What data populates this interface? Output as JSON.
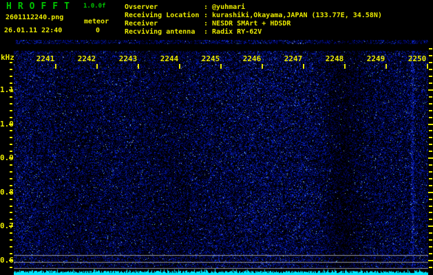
{
  "header": {
    "title": "HROFFT",
    "version": "1.0.0f",
    "filename": "2601112240.png",
    "meteor_label": "meteor",
    "meteor_count": "0",
    "timestamp": "26.01.11 22:40"
  },
  "info": {
    "rows": [
      {
        "label": "Ovserver",
        "sep": ":",
        "value": "@yuhmari"
      },
      {
        "label": "Receiving Location",
        "sep": ":",
        "value": "kurashiki,Okayama,JAPAN (133.77E, 34.58N)"
      },
      {
        "label": "Receiver",
        "sep": ":",
        "value": "NESDR SMArt + HDSDR"
      },
      {
        "label": "Recviving antenna",
        "sep": ":",
        "value": "Radix RY-62V"
      }
    ]
  },
  "chart_data": {
    "type": "spectrogram",
    "x_labels": [
      "2241",
      "2242",
      "2243",
      "2244",
      "2245",
      "2246",
      "2247",
      "2248",
      "2249",
      "2250"
    ],
    "y_unit": "kHz",
    "y_ticks": [
      "1.1",
      "1.0",
      "0.9",
      "0.8",
      "0.7",
      "0.6"
    ],
    "y_minor_ticks_per_major": 5,
    "reference_lines_khz": [
      0.61,
      0.59,
      0.58
    ],
    "meteor_count": 0,
    "content": "uniform dark-blue background noise; slightly brighter band near 2246, darker band near 2248, faint narrow carrier column just left of 2250; three gray horizontal reference lines near 0.6 kHz; spiky cyan signal-level trace along the bottom edge; no meteor echoes",
    "colors": {
      "background": "#000000",
      "axis_text": "#eaea00",
      "title_text": "#00c400",
      "noise_dot": "#1830c0",
      "bright_speck": "#7fd4ff",
      "reference_line": "#9a9a9a",
      "trace": "#00e6ff"
    }
  }
}
